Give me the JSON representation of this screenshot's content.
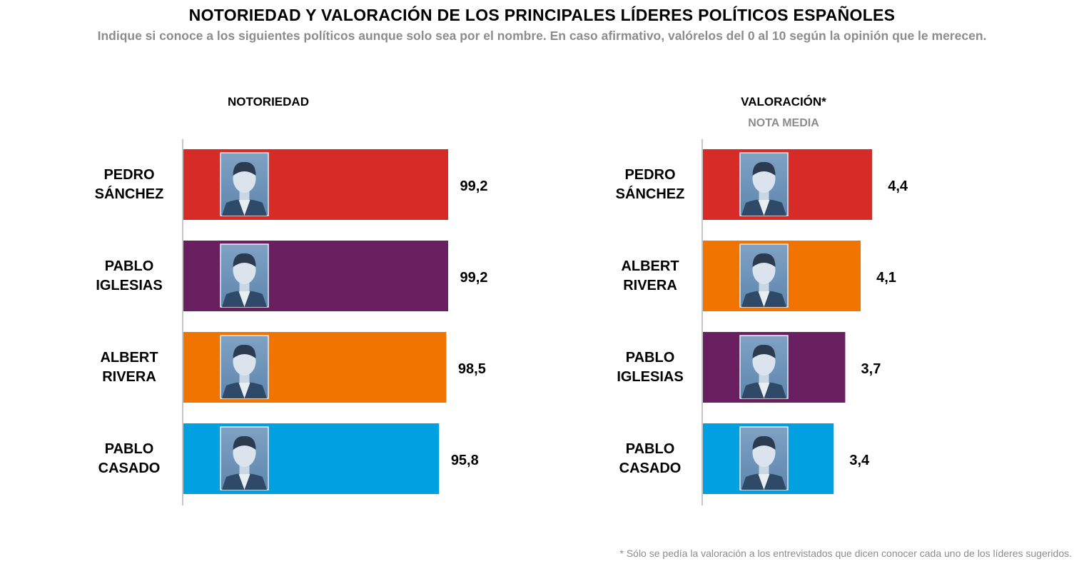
{
  "title": "NOTORIEDAD Y VALORACIÓN DE LOS PRINCIPALES LÍDERES POLÍTICOS ESPAÑOLES",
  "subtitle": "Indique si conoce a los siguientes políticos aunque solo sea por el nombre. En caso afirmativo, valórelos del 0 al 10 según la opinión que le merecen.",
  "footnote": "* Sólo se pedía la valoración a los entrevistados que dicen conocer cada uno de los líderes sugeridos.",
  "colors": {
    "pedro_sanchez": "#d62b27",
    "pablo_iglesias": "#6a2060",
    "albert_rivera": "#f27400",
    "pablo_casado": "#00a0e1",
    "photo_tint": "#6b8fb3"
  },
  "photo_icon": "portrait-photo",
  "chart_data": [
    {
      "type": "bar",
      "orientation": "horizontal",
      "title": "NOTORIEDAD",
      "subtitle": "",
      "categories": [
        [
          "PEDRO",
          "SÁNCHEZ"
        ],
        [
          "PABLO",
          "IGLESIAS"
        ],
        [
          "ALBERT",
          "RIVERA"
        ],
        [
          "PABLO",
          "CASADO"
        ]
      ],
      "values": [
        99.2,
        99.2,
        98.5,
        95.8
      ],
      "value_labels": [
        "99,2",
        "99,2",
        "98,5",
        "95,8"
      ],
      "bar_colors": [
        "#d62b27",
        "#6a2060",
        "#f27400",
        "#00a0e1"
      ],
      "xlim": [
        0,
        100
      ],
      "grid": false,
      "legend": "none"
    },
    {
      "type": "bar",
      "orientation": "horizontal",
      "title": "VALORACIÓN*",
      "subtitle": "NOTA MEDIA",
      "categories": [
        [
          "PEDRO",
          "SÁNCHEZ"
        ],
        [
          "ALBERT",
          "RIVERA"
        ],
        [
          "PABLO",
          "IGLESIAS"
        ],
        [
          "PABLO",
          "CASADO"
        ]
      ],
      "values": [
        4.4,
        4.1,
        3.7,
        3.4
      ],
      "value_labels": [
        "4,4",
        "4,1",
        "3,7",
        "3,4"
      ],
      "bar_colors": [
        "#d62b27",
        "#f27400",
        "#6a2060",
        "#00a0e1"
      ],
      "xlim": [
        0,
        10
      ],
      "grid": false,
      "legend": "none"
    }
  ]
}
